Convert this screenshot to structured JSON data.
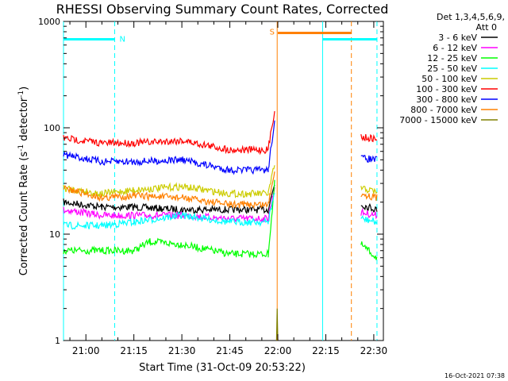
{
  "chart_data": {
    "type": "line",
    "title": "RHESSI Observing Summary Count Rates, Corrected",
    "xlabel": "Start Time (31-Oct-09 20:53:22)",
    "ylabel_main": "Corrected Count Rate (s",
    "ylabel_sup1": "-1",
    "ylabel_mid": " detector",
    "ylabel_sup2": "-1",
    "ylabel_end": ")",
    "yscale": "log",
    "ylim": [
      1,
      1000
    ],
    "xlim_minutes": [
      "20:53",
      "22:33"
    ],
    "y_ticks": [
      "1",
      "10",
      "100",
      "1000"
    ],
    "x_ticks": [
      "21:00",
      "21:15",
      "21:30",
      "21:45",
      "22:00",
      "22:15",
      "22:30"
    ],
    "legend_title_1": "Det 1,3,4,5,6,9,",
    "legend_title_2": "Att 0",
    "legend_position": "top-right outside",
    "footer_date": "16-Oct-2021 07:38",
    "series": [
      {
        "name": "3 - 6 keV",
        "color": "#000000",
        "x": [
          "20:53",
          "21:05",
          "21:15",
          "21:30",
          "21:45",
          "21:57",
          "21:59",
          "22:00",
          "22:26",
          "22:31"
        ],
        "y": [
          20,
          18,
          18,
          17,
          17,
          17,
          30,
          null,
          19,
          17
        ]
      },
      {
        "name": "6 - 12 keV",
        "color": "#ff00ff",
        "x": [
          "20:53",
          "21:05",
          "21:15",
          "21:30",
          "21:45",
          "21:57",
          "21:59",
          "22:00",
          "22:26",
          "22:31"
        ],
        "y": [
          17,
          15,
          15,
          15,
          14,
          14,
          28,
          null,
          16,
          15
        ]
      },
      {
        "name": "12 - 25 keV",
        "color": "#00ff00",
        "x": [
          "20:53",
          "21:05",
          "21:15",
          "21:20",
          "21:30",
          "21:45",
          "21:57",
          "21:59",
          "22:00",
          "22:26",
          "22:31"
        ],
        "y": [
          7,
          7,
          7,
          8.5,
          8,
          6.5,
          6.5,
          30,
          null,
          8,
          6
        ]
      },
      {
        "name": "25 - 50 keV",
        "color": "#00ffff",
        "x": [
          "20:53",
          "21:05",
          "21:15",
          "21:30",
          "21:45",
          "21:57",
          "21:59",
          "22:00",
          "22:26",
          "22:31"
        ],
        "y": [
          12,
          12,
          13,
          15,
          13,
          13,
          25,
          null,
          14,
          13
        ]
      },
      {
        "name": "50 - 100 keV",
        "color": "#cccc00",
        "x": [
          "20:53",
          "21:05",
          "21:15",
          "21:30",
          "21:45",
          "21:57",
          "21:59",
          "22:00",
          "22:26",
          "22:31"
        ],
        "y": [
          27,
          24,
          26,
          28,
          24,
          24,
          45,
          null,
          27,
          25
        ]
      },
      {
        "name": "100 - 300 keV",
        "color": "#ff0000",
        "x": [
          "20:53",
          "21:05",
          "21:15",
          "21:30",
          "21:45",
          "21:57",
          "21:59",
          "22:00",
          "22:26",
          "22:31"
        ],
        "y": [
          80,
          72,
          72,
          76,
          62,
          62,
          150,
          null,
          82,
          78
        ]
      },
      {
        "name": "300 - 800 keV",
        "color": "#0000ff",
        "x": [
          "20:53",
          "21:05",
          "21:15",
          "21:30",
          "21:45",
          "21:57",
          "21:59",
          "22:00",
          "22:26",
          "22:31"
        ],
        "y": [
          56,
          48,
          48,
          50,
          40,
          40,
          120,
          null,
          52,
          50
        ]
      },
      {
        "name": "800 - 7000 keV",
        "color": "#ff8000",
        "x": [
          "20:53",
          "21:05",
          "21:15",
          "21:30",
          "21:45",
          "21:57",
          "21:59",
          "22:00",
          "22:26",
          "22:31"
        ],
        "y": [
          27,
          22,
          23,
          22,
          19,
          19,
          40,
          null,
          24,
          22
        ]
      },
      {
        "name": "7000 - 15000 keV",
        "color": "#808000",
        "x": [
          "21:59.6",
          "21:59.8",
          "22:00"
        ],
        "y": [
          1,
          2,
          1
        ]
      }
    ],
    "flag_bars": [
      {
        "label": "N",
        "color": "#00ffff",
        "from": "20:53",
        "to": "21:09",
        "level": 680
      },
      {
        "label": "",
        "color": "#00ffff",
        "from": "22:14",
        "to": "22:31",
        "level": 680
      },
      {
        "label": "S",
        "color": "#ff8000",
        "from": "22:00",
        "to": "22:23",
        "level": 780
      }
    ],
    "vertical_lines": [
      {
        "x": "20:53",
        "color": "#00ffff",
        "dashed": false
      },
      {
        "x": "21:09",
        "color": "#00ffff",
        "dashed": true
      },
      {
        "x": "21:59.8",
        "color": "#ff8000",
        "dashed": false
      },
      {
        "x": "22:14",
        "color": "#00ffff",
        "dashed": false
      },
      {
        "x": "22:23",
        "color": "#ff8000",
        "dashed": true
      },
      {
        "x": "22:31",
        "color": "#00ffff",
        "dashed": true
      }
    ]
  }
}
